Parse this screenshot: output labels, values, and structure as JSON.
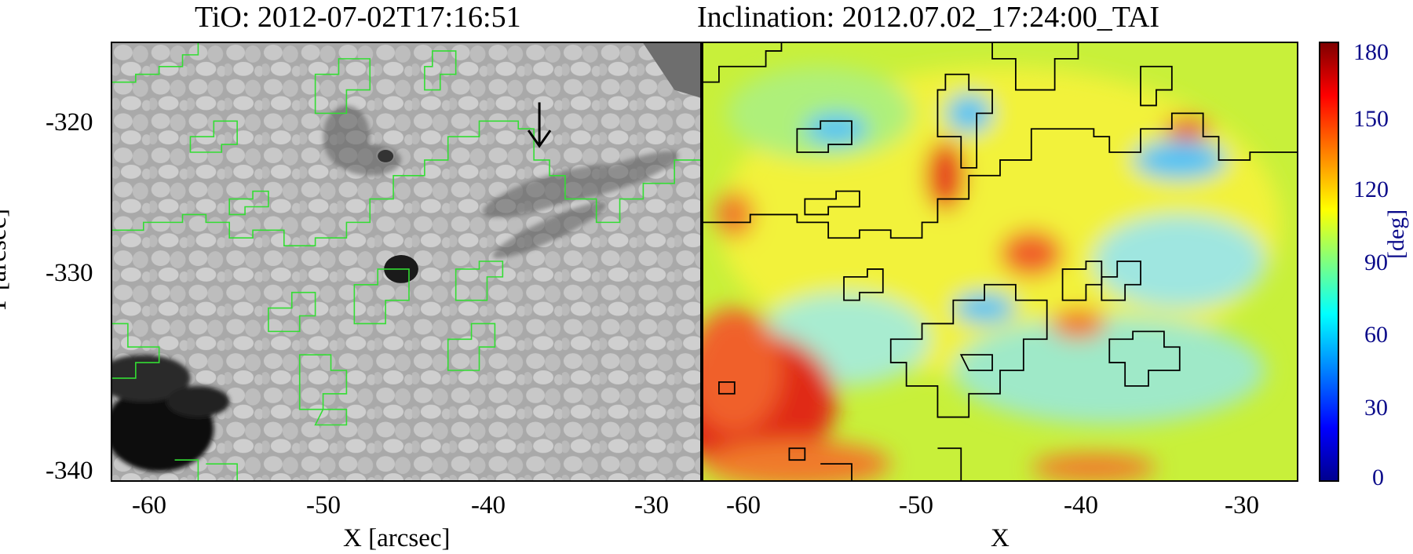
{
  "titles": {
    "left": "TiO: 2012-07-02T17:16:51",
    "right": "Inclination: 2012.07.02_17:24:00_TAI"
  },
  "axes": {
    "y_title": "Y [arcsec]",
    "x_title_left": "X [arcsec]",
    "x_title_right": "X",
    "y_ticks": [
      "-320",
      "-330",
      "-340"
    ],
    "x_ticks": [
      "-60",
      "-50",
      "-40",
      "-30"
    ]
  },
  "colorbar": {
    "ticks": [
      "180",
      "150",
      "120",
      "90",
      "60",
      "30",
      "0"
    ],
    "unit": "[deg]",
    "range": [
      0,
      180
    ]
  },
  "colors": {
    "left_contour": "#33dd33",
    "right_contour": "#000000",
    "colorbar_text": "#0b0b8a"
  }
}
